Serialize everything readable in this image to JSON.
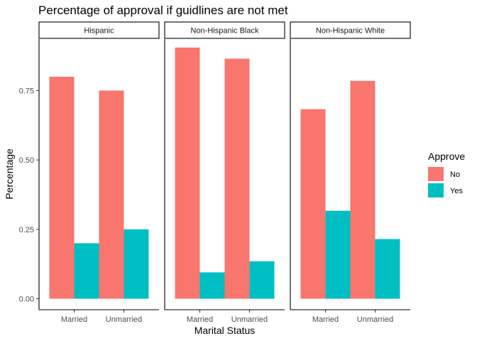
{
  "chart_data": {
    "type": "bar",
    "title": "Percentage of approval if guidlines are not met",
    "xlabel": "Marital Status",
    "ylabel": "Percentage",
    "ylim": [
      0,
      0.9
    ],
    "yticks": [
      "0.00",
      "0.25",
      "0.50",
      "0.75"
    ],
    "ytick_values": [
      0,
      0.25,
      0.5,
      0.75
    ],
    "categories": [
      "Married",
      "Unmarried"
    ],
    "facets": [
      {
        "name": "Hispanic",
        "series": [
          {
            "name": "No",
            "values": [
              0.8,
              0.75
            ]
          },
          {
            "name": "Yes",
            "values": [
              0.2,
              0.25
            ]
          }
        ]
      },
      {
        "name": "Non-Hispanic Black",
        "series": [
          {
            "name": "No",
            "values": [
              0.905,
              0.865
            ]
          },
          {
            "name": "Yes",
            "values": [
              0.095,
              0.135
            ]
          }
        ]
      },
      {
        "name": "Non-Hispanic White",
        "series": [
          {
            "name": "No",
            "values": [
              0.683,
              0.785
            ]
          },
          {
            "name": "Yes",
            "values": [
              0.317,
              0.215
            ]
          }
        ]
      }
    ],
    "legend": {
      "title": "Approve",
      "position": "right",
      "items": [
        {
          "label": "No",
          "color": "#F8766D"
        },
        {
          "label": "Yes",
          "color": "#00BFC4"
        }
      ]
    },
    "grid": false
  }
}
